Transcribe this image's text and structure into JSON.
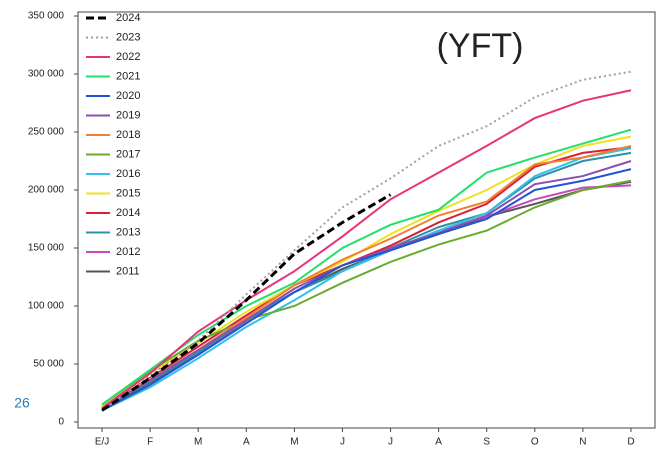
{
  "chart_data": {
    "type": "line",
    "annotation": "(YFT)",
    "page_number": "26",
    "categories": [
      "E/J",
      "F",
      "M",
      "A",
      "M",
      "J",
      "J",
      "A",
      "S",
      "O",
      "N",
      "D"
    ],
    "ylim": [
      0,
      350000
    ],
    "yticks": [
      0,
      {
        "value": 50000,
        "label": "50 000"
      },
      {
        "value": 100000,
        "label": "100 000"
      },
      {
        "value": 150000,
        "label": "150 000"
      },
      {
        "value": 200000,
        "label": "200 000"
      },
      {
        "value": 250000,
        "label": "250 000"
      },
      {
        "value": 300000,
        "label": "300 000"
      },
      {
        "value": 350000,
        "label": "350 000"
      }
    ],
    "legend": "top-left",
    "series": [
      {
        "name": "2024",
        "color": "#000000",
        "style": "dashed",
        "values": [
          10000,
          38000,
          68000,
          105000,
          145000,
          172000,
          196000,
          null,
          null,
          null,
          null,
          null
        ]
      },
      {
        "name": "2023",
        "color": "#a0a0a0",
        "style": "dotted",
        "values": [
          10000,
          40000,
          70000,
          110000,
          148000,
          185000,
          210000,
          238000,
          255000,
          280000,
          295000,
          302000
        ]
      },
      {
        "name": "2022",
        "color": "#e8337a",
        "style": "solid",
        "values": [
          12000,
          42000,
          78000,
          105000,
          130000,
          160000,
          192000,
          215000,
          238000,
          262000,
          277000,
          286000
        ]
      },
      {
        "name": "2021",
        "color": "#22e06a",
        "style": "solid",
        "values": [
          15000,
          45000,
          75000,
          100000,
          120000,
          150000,
          170000,
          183000,
          215000,
          228000,
          240000,
          252000
        ]
      },
      {
        "name": "2020",
        "color": "#2255d0",
        "style": "solid",
        "values": [
          10000,
          32000,
          58000,
          85000,
          112000,
          135000,
          148000,
          162000,
          175000,
          200000,
          208000,
          218000
        ]
      },
      {
        "name": "2019",
        "color": "#8a4fb0",
        "style": "solid",
        "values": [
          12000,
          36000,
          62000,
          88000,
          115000,
          135000,
          150000,
          163000,
          178000,
          205000,
          212000,
          225000
        ]
      },
      {
        "name": "2018",
        "color": "#f08030",
        "style": "solid",
        "values": [
          12000,
          37000,
          62000,
          90000,
          118000,
          140000,
          158000,
          178000,
          190000,
          222000,
          228000,
          238000
        ]
      },
      {
        "name": "2017",
        "color": "#6aaa30",
        "style": "solid",
        "values": [
          15000,
          44000,
          70000,
          88000,
          100000,
          120000,
          138000,
          153000,
          165000,
          185000,
          200000,
          208000
        ]
      },
      {
        "name": "2016",
        "color": "#30c0e8",
        "style": "solid",
        "values": [
          10000,
          30000,
          55000,
          82000,
          105000,
          130000,
          148000,
          165000,
          180000,
          212000,
          228000,
          236000
        ]
      },
      {
        "name": "2015",
        "color": "#f0e020",
        "style": "solid",
        "values": [
          13000,
          42000,
          68000,
          95000,
          118000,
          138000,
          162000,
          182000,
          200000,
          222000,
          238000,
          246000
        ]
      },
      {
        "name": "2014",
        "color": "#d8203a",
        "style": "solid",
        "values": [
          12000,
          38000,
          65000,
          92000,
          118000,
          135000,
          152000,
          172000,
          188000,
          220000,
          232000,
          237000
        ]
      },
      {
        "name": "2013",
        "color": "#3090a8",
        "style": "solid",
        "values": [
          12000,
          35000,
          60000,
          88000,
          112000,
          130000,
          150000,
          168000,
          180000,
          210000,
          225000,
          232000
        ]
      },
      {
        "name": "2012",
        "color": "#c848c0",
        "style": "solid",
        "values": [
          12000,
          35000,
          60000,
          87000,
          112000,
          130000,
          148000,
          165000,
          177000,
          192000,
          202000,
          204000
        ]
      },
      {
        "name": "2011",
        "color": "#555555",
        "style": "solid",
        "values": [
          11000,
          34000,
          58000,
          86000,
          112000,
          132000,
          148000,
          162000,
          177000,
          188000,
          200000,
          207000
        ]
      }
    ]
  }
}
